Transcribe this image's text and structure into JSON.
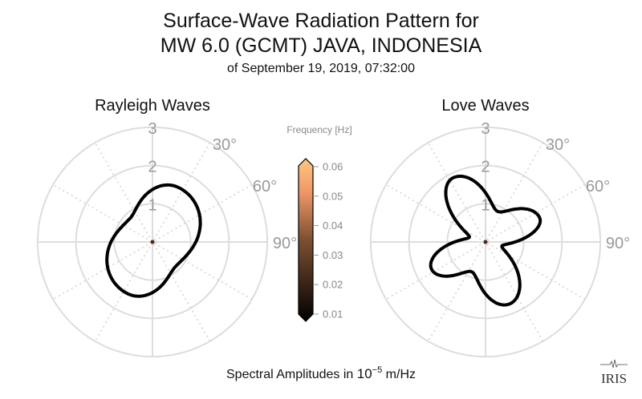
{
  "chart_data": {
    "type": "polar",
    "title_line1": "Surface-Wave Radiation Pattern for",
    "title_line2": "MW 6.0 (GCMT) JAVA, INDONESIA",
    "subtitle": "of September 19, 2019, 07:32:00",
    "xlabel_prefix": "Spectral Amplitudes in ",
    "xlabel_base": "10",
    "xlabel_exp": "−5",
    "xlabel_unit": " m/Hz",
    "radial_ticks": [
      "1",
      "2",
      "3"
    ],
    "radial_range": [
      0,
      3
    ],
    "angle_ticks": [
      "30°",
      "60°",
      "90°"
    ],
    "grid": true,
    "panels": [
      {
        "title": "Rayleigh Waves",
        "series": {
          "name": "Rayleigh",
          "azimuth_deg": [
            25,
            135,
            205,
            315
          ],
          "amplitude": [
            1.58,
            0.88,
            1.5,
            0.85
          ]
        }
      },
      {
        "title": "Love Waves",
        "series": {
          "name": "Love",
          "azimuth_deg": [
            22,
            66,
            104,
            159,
            205,
            243,
            287,
            333
          ],
          "amplitude": [
            0.86,
            1.55,
            0.44,
            1.74,
            0.86,
            1.58,
            0.44,
            1.88
          ]
        }
      }
    ],
    "colorbar": {
      "label": "Frequency [Hz]",
      "colormap": "copper",
      "range": [
        0.01,
        0.06
      ],
      "ticks": [
        "0.06",
        "0.05",
        "0.04",
        "0.03",
        "0.02",
        "0.01"
      ],
      "extend": "both"
    },
    "logo_text": "IRIS",
    "colors": {
      "curve": "#000000",
      "grid": "#dddddd",
      "tick_text": "#999999",
      "center": "#4a2a18"
    }
  }
}
